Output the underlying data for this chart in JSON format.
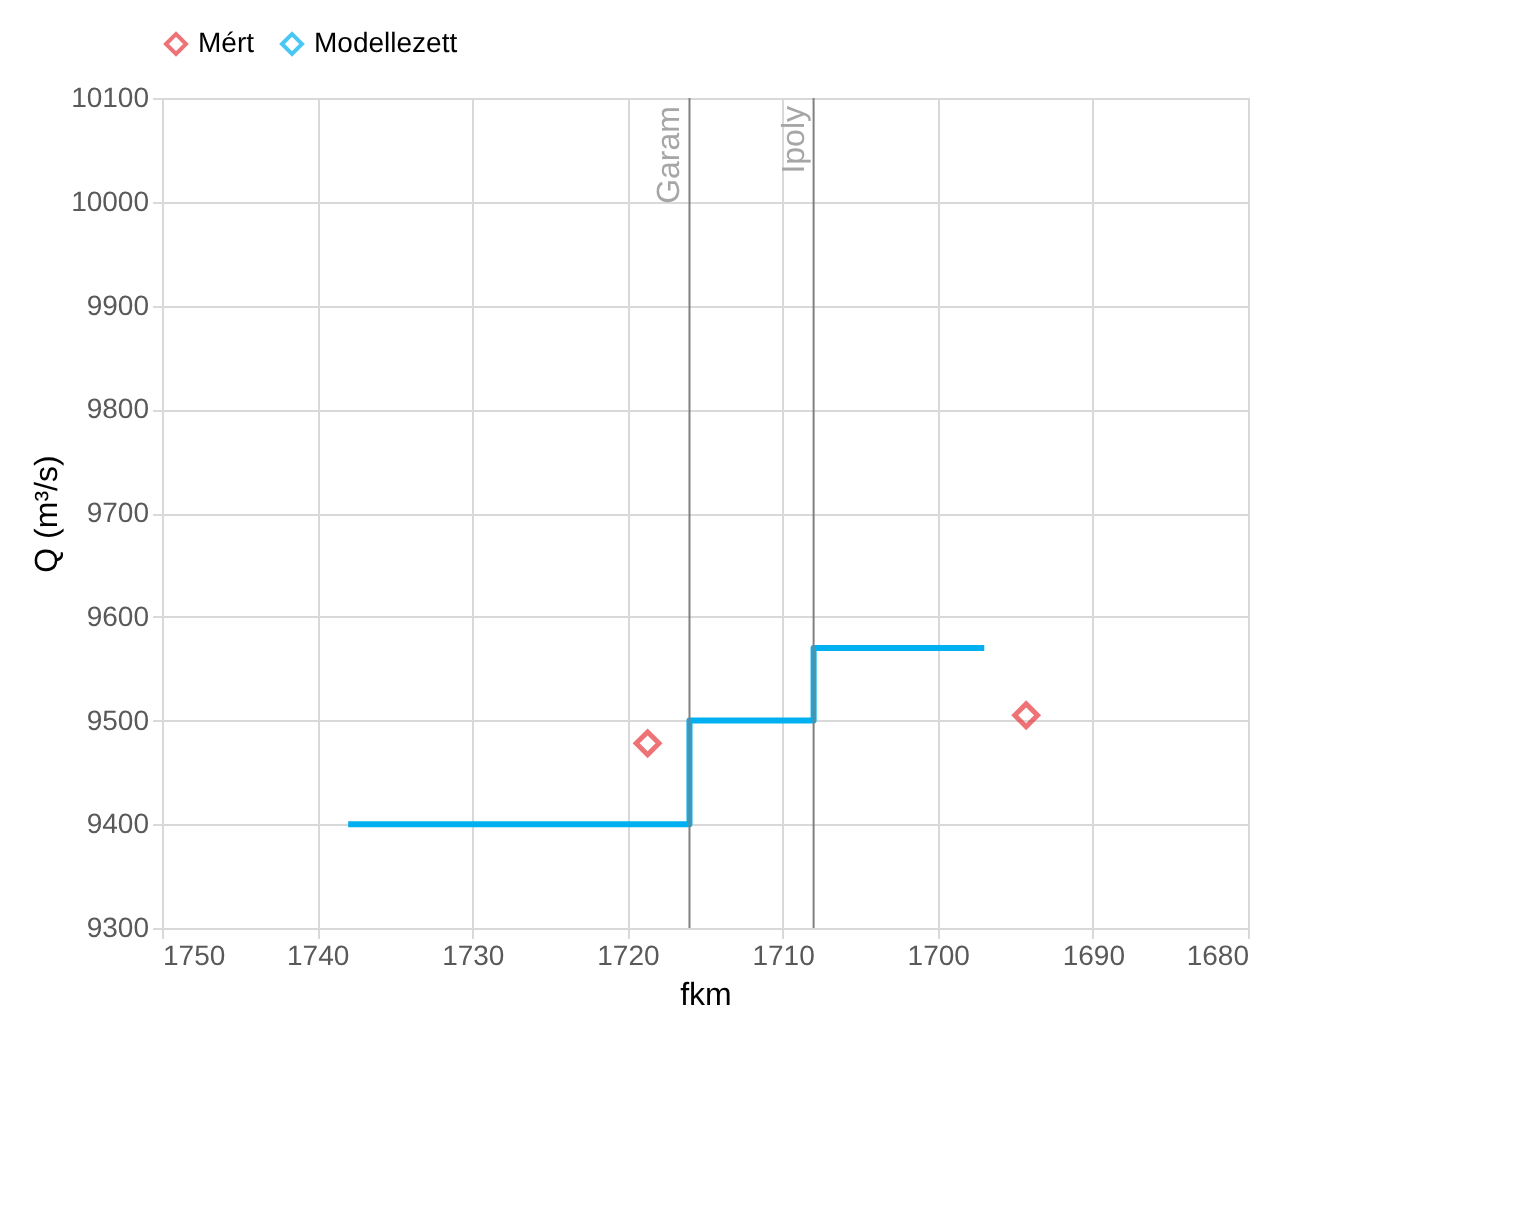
{
  "chart_data": {
    "type": "step",
    "xlabel": "fkm",
    "ylabel": "Q (m³/s)",
    "xlim": [
      1750,
      1680
    ],
    "xticks": [
      1750,
      1740,
      1730,
      1720,
      1710,
      1700,
      1690,
      1680
    ],
    "ylim": [
      9300,
      10100
    ],
    "yticks": [
      9300,
      9400,
      9500,
      9600,
      9700,
      9800,
      9900,
      10000,
      10100
    ],
    "grid": true,
    "legend": "top",
    "series": [
      {
        "name": "Mért",
        "type": "scatter",
        "marker": "diamond",
        "color": "#e8383d",
        "x": [
          1718.7,
          1694.3
        ],
        "values": [
          9478,
          9505
        ]
      },
      {
        "name": "Modellezett",
        "marker": "none",
        "color": "#00b0f0",
        "x": [
          1738,
          1716,
          1708,
          1697
        ],
        "values": [
          9400,
          9500,
          9570,
          9570
        ]
      }
    ],
    "ref_lines": [
      {
        "axis": "x",
        "value": 1716,
        "label": "Garam",
        "color": "#808080"
      },
      {
        "axis": "x",
        "value": 1708,
        "label": "Ipoly",
        "color": "#808080"
      }
    ]
  }
}
